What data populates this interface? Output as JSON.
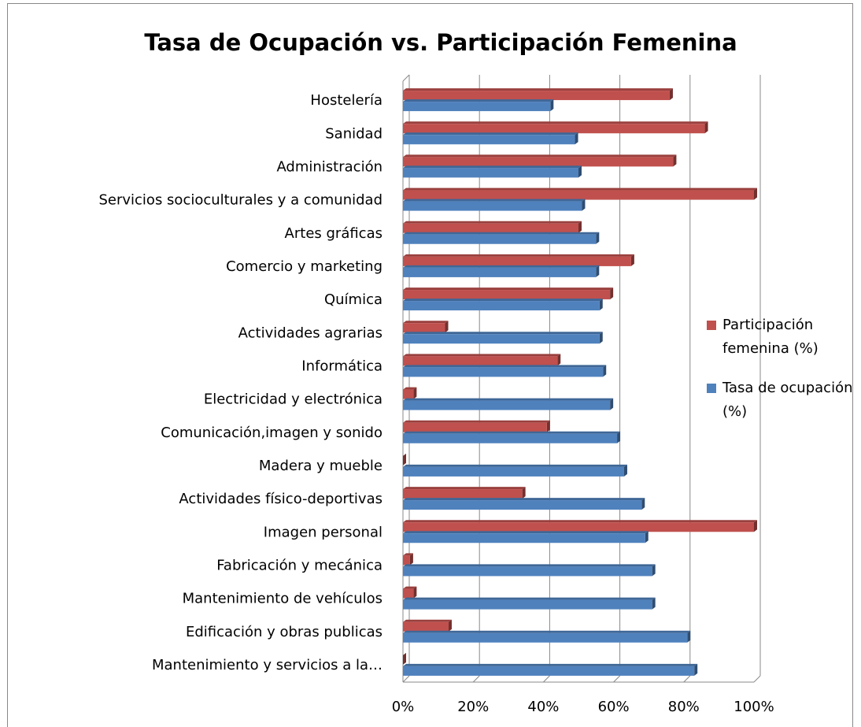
{
  "chart_data": {
    "type": "bar",
    "orientation": "horizontal",
    "title": "Tasa de Ocupación vs. Participación Femenina",
    "categories": [
      "Hostelería",
      "Sanidad",
      "Administración",
      "Servicios socioculturales y a comunidad",
      "Artes gráficas",
      "Comercio y marketing",
      "Química",
      "Actividades agrarias",
      "Informática",
      "Electricidad y electrónica",
      "Comunicación,imagen y sonido",
      "Madera y mueble",
      "Actividades físico-deportivas",
      "Imagen personal",
      "Fabricación y mecánica",
      "Mantenimiento de vehículos",
      "Edificación y obras publicas",
      "Mantenimiento y servicios a la…"
    ],
    "series": [
      {
        "name": "Participación femenina (%)",
        "color": "#c0504d",
        "values": [
          76,
          86,
          77,
          100,
          50,
          65,
          59,
          12,
          44,
          3,
          41,
          0,
          34,
          100,
          2,
          3,
          13,
          0
        ]
      },
      {
        "name": "Tasa de ocupación (%)",
        "color": "#4f81bd",
        "values": [
          42,
          49,
          50,
          51,
          55,
          55,
          56,
          56,
          57,
          59,
          61,
          63,
          68,
          69,
          71,
          71,
          81,
          83
        ]
      }
    ],
    "xlim": [
      0,
      100
    ],
    "xticks": [
      {
        "value": 0,
        "label": "0%"
      },
      {
        "value": 20,
        "label": "20%"
      },
      {
        "value": 40,
        "label": "40%"
      },
      {
        "value": 60,
        "label": "60%"
      },
      {
        "value": 80,
        "label": "80%"
      },
      {
        "value": 100,
        "label": "100%"
      }
    ],
    "grid": true,
    "legend": "right"
  }
}
